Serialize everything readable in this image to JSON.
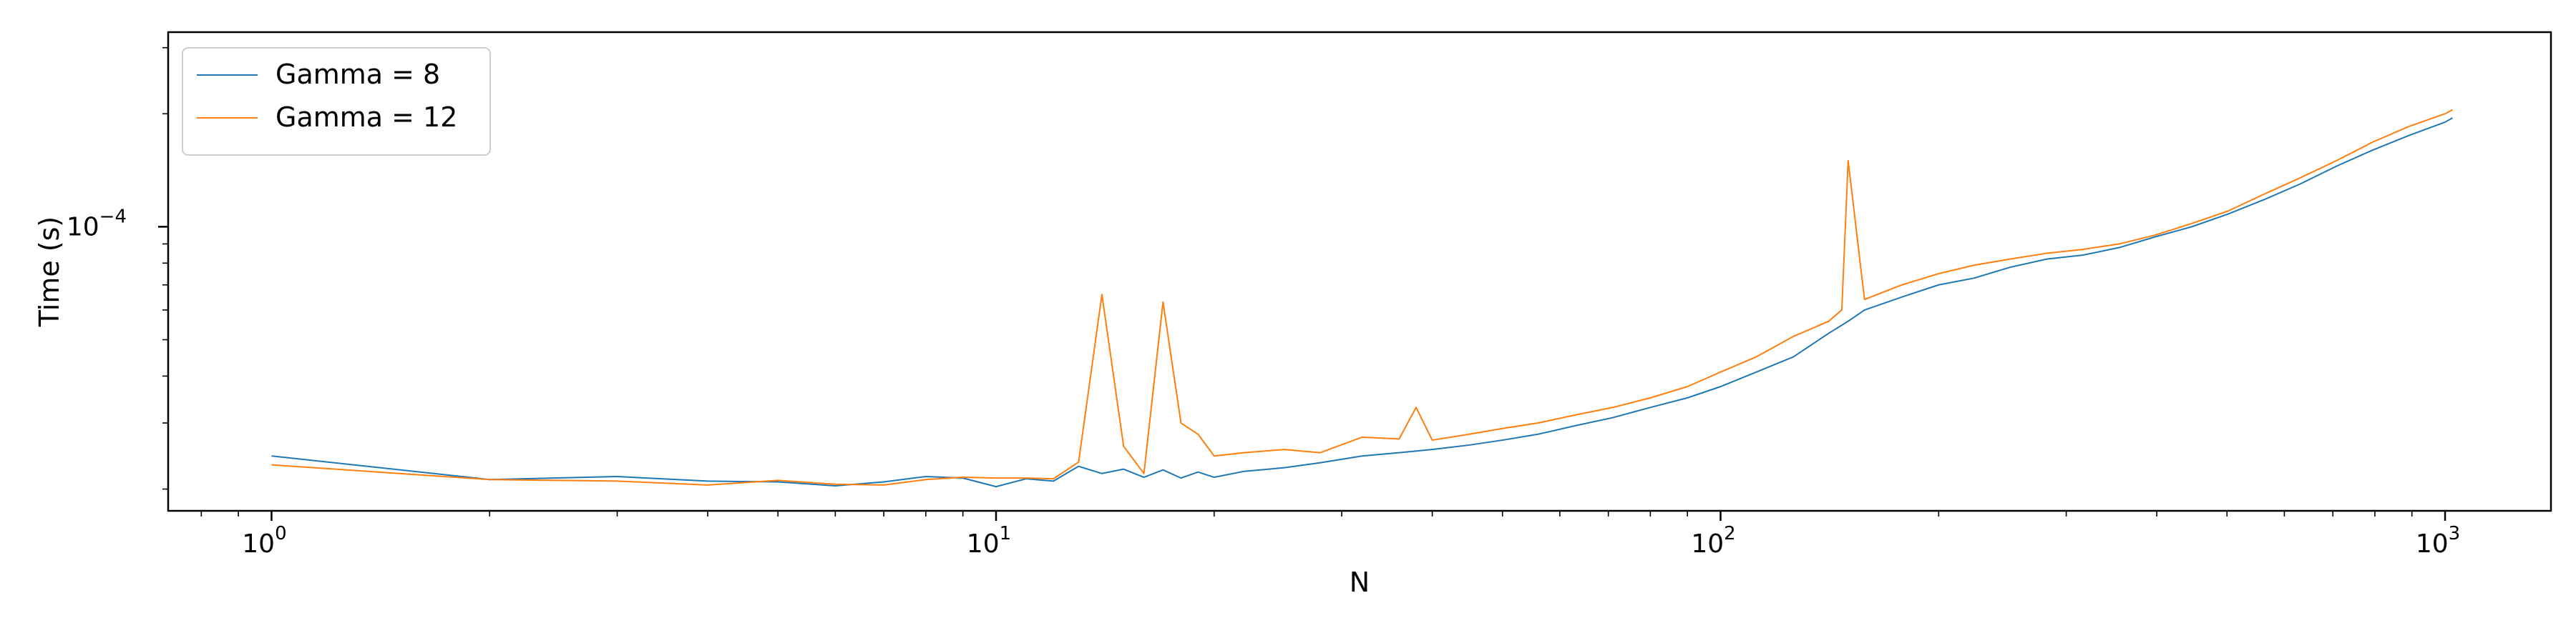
{
  "chart_data": {
    "type": "line",
    "xlabel": "N",
    "ylabel": "Time (s)",
    "xscale": "log",
    "yscale": "log",
    "xlim": [
      0.72,
      1400
    ],
    "ylim": [
      1.75e-05,
      0.00033
    ],
    "grid": false,
    "legend_position": "top-left",
    "x_major_ticks": [
      {
        "value": 1,
        "base": "10",
        "exp": "0"
      },
      {
        "value": 10,
        "base": "10",
        "exp": "1"
      },
      {
        "value": 100,
        "base": "10",
        "exp": "2"
      },
      {
        "value": 1000,
        "base": "10",
        "exp": "3"
      }
    ],
    "y_major_ticks": [
      {
        "value": 0.0001,
        "base": "10",
        "exp": "−4"
      }
    ],
    "series": [
      {
        "name": "Gamma = 8",
        "color": "#1f77b4",
        "x": [
          1,
          2,
          3,
          4,
          5,
          6,
          7,
          8,
          9,
          10,
          11,
          12,
          13,
          14,
          15,
          16,
          17,
          18,
          19,
          20,
          22,
          25,
          28,
          32,
          36,
          40,
          45,
          50,
          56,
          63,
          71,
          80,
          90,
          100,
          112,
          126,
          141,
          150,
          158,
          178,
          200,
          224,
          251,
          282,
          316,
          355,
          398,
          447,
          501,
          562,
          631,
          708,
          794,
          891,
          1000,
          1024
        ],
        "y": [
          2.45e-05,
          2.12e-05,
          2.16e-05,
          2.1e-05,
          2.09e-05,
          2.04e-05,
          2.09e-05,
          2.16e-05,
          2.14e-05,
          2.03e-05,
          2.13e-05,
          2.1e-05,
          2.3e-05,
          2.2e-05,
          2.26e-05,
          2.15e-05,
          2.25e-05,
          2.14e-05,
          2.22e-05,
          2.15e-05,
          2.23e-05,
          2.28e-05,
          2.35e-05,
          2.45e-05,
          2.5e-05,
          2.55e-05,
          2.62e-05,
          2.7e-05,
          2.8e-05,
          2.95e-05,
          3.1e-05,
          3.3e-05,
          3.5e-05,
          3.75e-05,
          4.1e-05,
          4.5e-05,
          5.2e-05,
          5.6e-05,
          6e-05,
          6.5e-05,
          7e-05,
          7.3e-05,
          7.8e-05,
          8.2e-05,
          8.4e-05,
          8.8e-05,
          9.4e-05,
          0.0001,
          0.000108,
          0.000118,
          0.00013,
          0.000145,
          0.00016,
          0.000175,
          0.00019,
          0.000195
        ]
      },
      {
        "name": "Gamma = 12",
        "color": "#ff7f0e",
        "x": [
          1,
          2,
          3,
          4,
          5,
          6,
          7,
          8,
          9,
          10,
          11,
          12,
          13,
          14,
          15,
          16,
          17,
          18,
          19,
          20,
          22,
          25,
          28,
          32,
          36,
          38,
          40,
          45,
          50,
          56,
          63,
          71,
          80,
          90,
          100,
          112,
          126,
          141,
          147,
          150,
          158,
          178,
          200,
          224,
          251,
          282,
          316,
          355,
          398,
          447,
          501,
          562,
          631,
          708,
          794,
          891,
          1000,
          1024
        ],
        "y": [
          2.32e-05,
          2.12e-05,
          2.1e-05,
          2.05e-05,
          2.11e-05,
          2.06e-05,
          2.05e-05,
          2.12e-05,
          2.15e-05,
          2.14e-05,
          2.14e-05,
          2.13e-05,
          2.36e-05,
          6.6e-05,
          2.6e-05,
          2.2e-05,
          6.3e-05,
          3e-05,
          2.8e-05,
          2.45e-05,
          2.5e-05,
          2.55e-05,
          2.5e-05,
          2.75e-05,
          2.72e-05,
          3.3e-05,
          2.7e-05,
          2.8e-05,
          2.9e-05,
          3e-05,
          3.15e-05,
          3.3e-05,
          3.5e-05,
          3.75e-05,
          4.1e-05,
          4.5e-05,
          5.1e-05,
          5.6e-05,
          6e-05,
          0.00015,
          6.4e-05,
          7e-05,
          7.5e-05,
          7.9e-05,
          8.2e-05,
          8.5e-05,
          8.7e-05,
          9e-05,
          9.5e-05,
          0.000102,
          0.00011,
          0.000122,
          0.000135,
          0.00015,
          0.000168,
          0.000185,
          0.0002,
          0.000205
        ]
      }
    ]
  }
}
